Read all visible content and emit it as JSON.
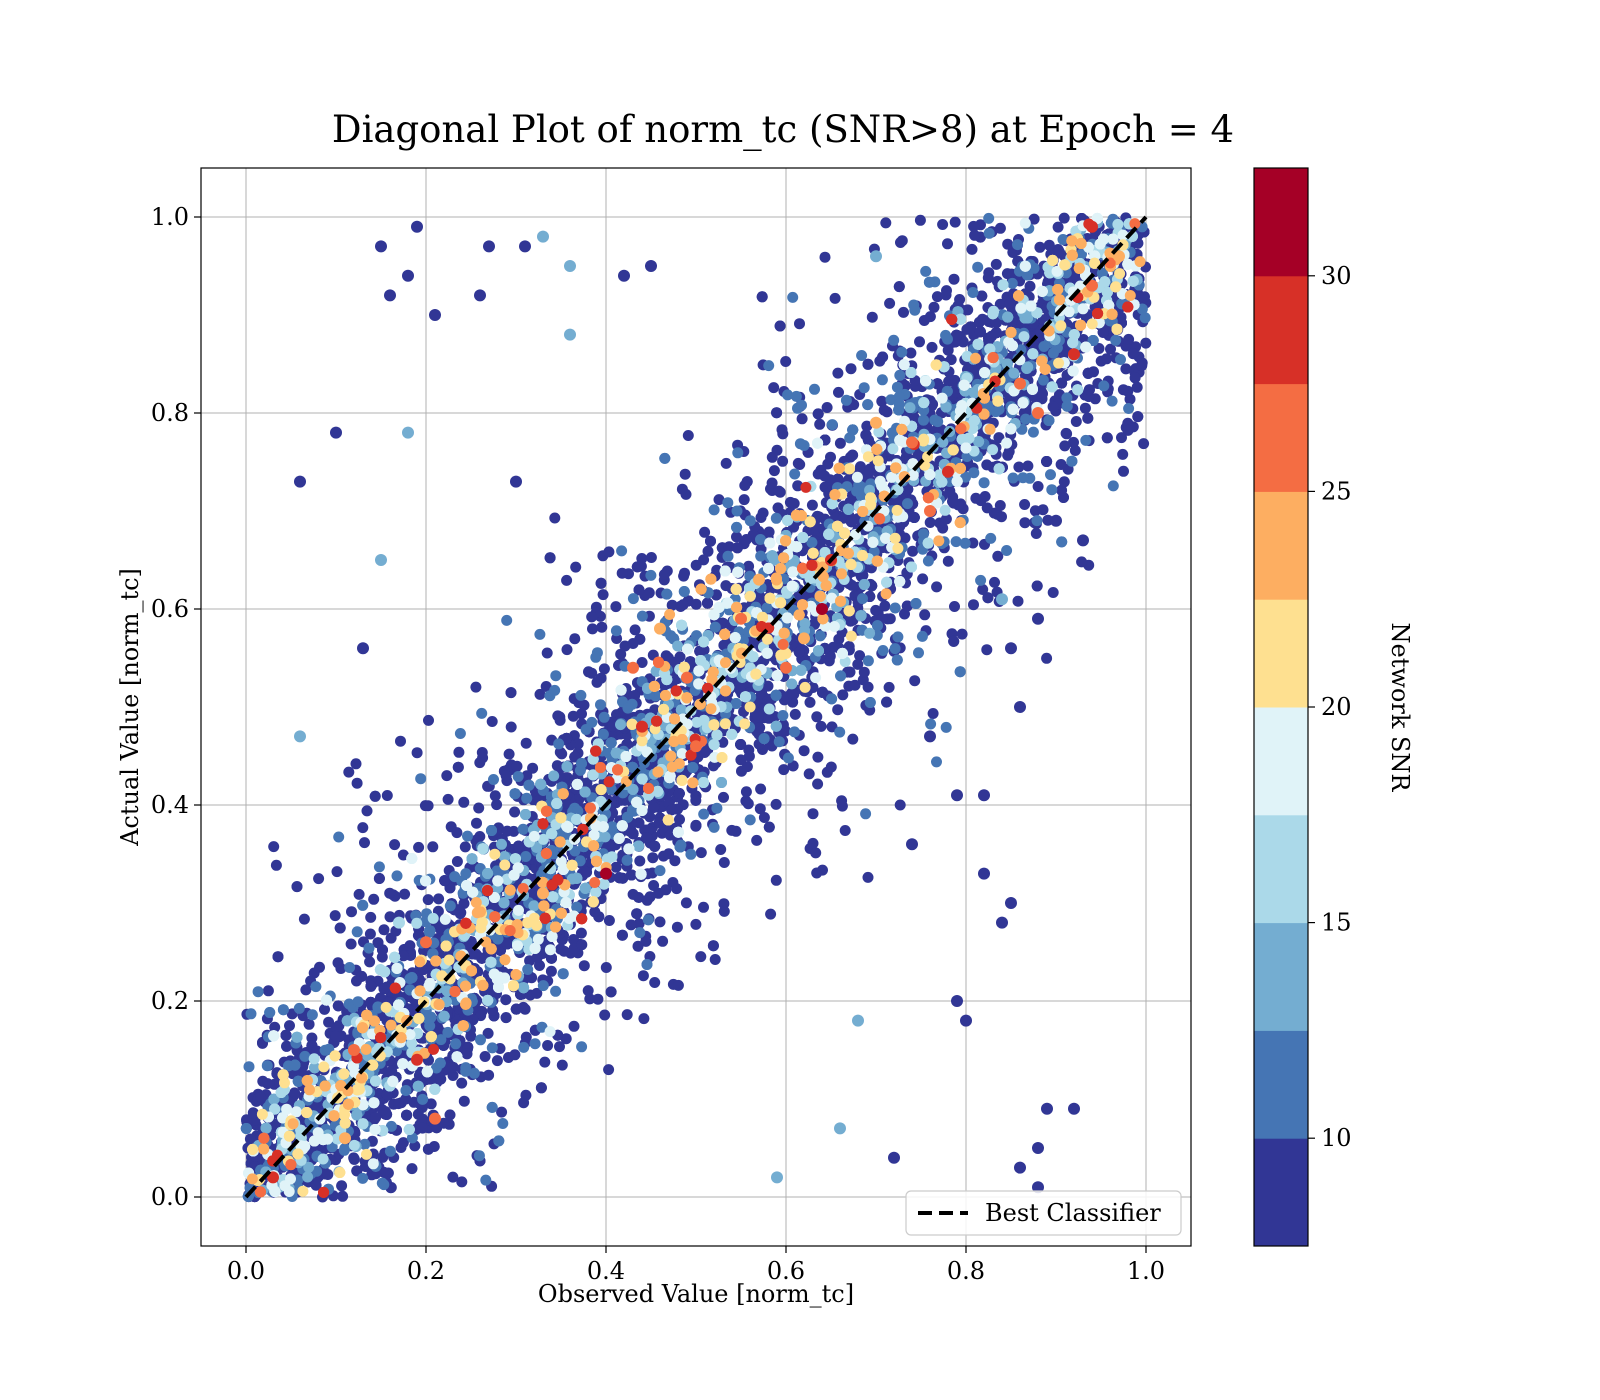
{
  "chart_data": {
    "type": "scatter",
    "title": "Diagonal Plot of norm_tc (SNR>8) at Epoch = 4",
    "xlabel": "Observed Value [norm_tc]",
    "ylabel": "Actual Value [norm_tc]",
    "xlim": [
      -0.05,
      1.05
    ],
    "ylim": [
      -0.05,
      1.05
    ],
    "x_ticks": [
      "0.0",
      "0.2",
      "0.4",
      "0.6",
      "0.8",
      "1.0"
    ],
    "y_ticks": [
      "0.0",
      "0.2",
      "0.4",
      "0.6",
      "0.8",
      "1.0"
    ],
    "grid": true,
    "reference_line": {
      "label": "Best Classifier",
      "x": [
        0,
        1
      ],
      "y": [
        0,
        1
      ],
      "style": "dashed",
      "color": "#000000"
    },
    "legend": {
      "position": "lower-right",
      "entries": [
        "Best Classifier"
      ]
    },
    "colorbar": {
      "label": "Network SNR",
      "range": [
        7.5,
        32.5
      ],
      "ticks": [
        "10",
        "15",
        "20",
        "25",
        "30"
      ],
      "colors": [
        "#313695",
        "#4575b4",
        "#74add1",
        "#abd9e9",
        "#e0f3f8",
        "#fee090",
        "#fdae61",
        "#f46d43",
        "#d73027",
        "#a50026"
      ]
    },
    "series": [
      {
        "points": [
          [
            0.1,
            0.78,
            9
          ],
          [
            0.06,
            0.73,
            9
          ],
          [
            0.15,
            0.97,
            9
          ],
          [
            0.19,
            0.99,
            9
          ],
          [
            0.18,
            0.94,
            9
          ],
          [
            0.16,
            0.92,
            9
          ],
          [
            0.21,
            0.9,
            9
          ],
          [
            0.26,
            0.92,
            9
          ],
          [
            0.27,
            0.97,
            9
          ],
          [
            0.33,
            0.98,
            14
          ],
          [
            0.31,
            0.97,
            9
          ],
          [
            0.36,
            0.95,
            14
          ],
          [
            0.42,
            0.94,
            9
          ],
          [
            0.45,
            0.95,
            9
          ],
          [
            0.15,
            0.65,
            14
          ],
          [
            0.06,
            0.47,
            14
          ],
          [
            0.13,
            0.56,
            9
          ],
          [
            0.18,
            0.78,
            14
          ],
          [
            0.36,
            0.88,
            14
          ],
          [
            0.3,
            0.73,
            9
          ],
          [
            0.17,
            0.28,
            16
          ],
          [
            0.12,
            0.15,
            26
          ],
          [
            0.2,
            0.26,
            26
          ],
          [
            0.19,
            0.14,
            28
          ],
          [
            0.03,
            0.02,
            28
          ],
          [
            0.21,
            0.08,
            26
          ],
          [
            0.11,
            0.06,
            24
          ],
          [
            0.33,
            0.31,
            24
          ],
          [
            0.4,
            0.33,
            31
          ],
          [
            0.43,
            0.54,
            26
          ],
          [
            0.44,
            0.48,
            28
          ],
          [
            0.46,
            0.58,
            24
          ],
          [
            0.49,
            0.53,
            26
          ],
          [
            0.55,
            0.59,
            26
          ],
          [
            0.57,
            0.63,
            24
          ],
          [
            0.65,
            0.65,
            29
          ],
          [
            0.64,
            0.6,
            31
          ],
          [
            0.62,
            0.57,
            24
          ],
          [
            0.78,
            0.74,
            29
          ],
          [
            0.74,
            0.77,
            26
          ],
          [
            0.7,
            0.79,
            24
          ],
          [
            0.86,
            0.83,
            26
          ],
          [
            0.92,
            0.86,
            29
          ],
          [
            0.94,
            0.93,
            26
          ],
          [
            0.94,
            0.99,
            29
          ],
          [
            0.97,
            0.96,
            24
          ],
          [
            0.88,
            0.8,
            26
          ],
          [
            0.76,
            0.7,
            26
          ],
          [
            0.6,
            0.54,
            26
          ],
          [
            0.5,
            0.46,
            26
          ],
          [
            0.59,
            0.02,
            14
          ],
          [
            0.66,
            0.07,
            14
          ],
          [
            0.68,
            0.18,
            14
          ],
          [
            0.7,
            0.96,
            14
          ],
          [
            0.84,
            0.61,
            14
          ],
          [
            0.72,
            0.04,
            9
          ],
          [
            0.8,
            0.18,
            9
          ],
          [
            0.79,
            0.2,
            9
          ],
          [
            0.86,
            0.03,
            9
          ],
          [
            0.88,
            0.01,
            9
          ],
          [
            0.89,
            0.09,
            9
          ],
          [
            0.92,
            0.09,
            9
          ],
          [
            0.88,
            0.05,
            9
          ],
          [
            0.82,
            0.33,
            9
          ],
          [
            0.85,
            0.3,
            9
          ],
          [
            0.84,
            0.28,
            9
          ],
          [
            0.76,
            0.47,
            9
          ],
          [
            0.79,
            0.41,
            9
          ],
          [
            0.82,
            0.41,
            9
          ],
          [
            0.85,
            0.56,
            9
          ],
          [
            0.88,
            0.59,
            9
          ],
          [
            0.86,
            0.5,
            9
          ],
          [
            0.9,
            0.69,
            9
          ],
          [
            0.93,
            0.67,
            9
          ],
          [
            0.74,
            0.36,
            9
          ]
        ]
      }
    ]
  }
}
